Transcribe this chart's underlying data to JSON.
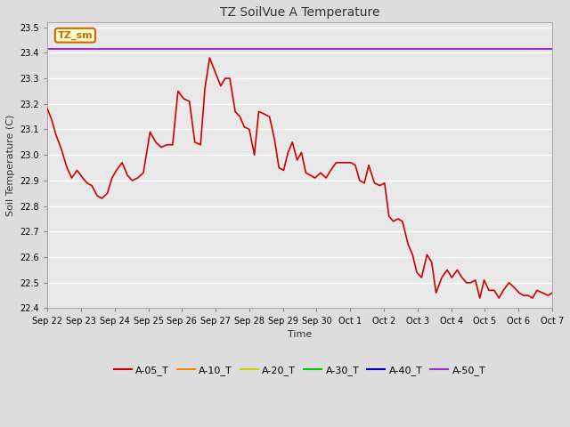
{
  "title": "TZ SoilVue A Temperature",
  "xlabel": "Time",
  "ylabel": "Soil Temperature (C)",
  "ylim": [
    22.4,
    23.52
  ],
  "yticks": [
    22.4,
    22.5,
    22.6,
    22.7,
    22.8,
    22.9,
    23.0,
    23.1,
    23.2,
    23.3,
    23.4,
    23.5
  ],
  "x_tick_labels": [
    "Sep 22",
    "Sep 23",
    "Sep 24",
    "Sep 25",
    "Sep 26",
    "Sep 27",
    "Sep 28",
    "Sep 29",
    "Sep 30",
    "Oct 1",
    "Oct 2",
    "Oct 3",
    "Oct 4",
    "Oct 5",
    "Oct 6",
    "Oct 7"
  ],
  "annotation_text": "TZ_sm",
  "annotation_color": "#cc6600",
  "annotation_bg": "#ffffcc",
  "annotation_border": "#cc6600",
  "horizontal_line_y": 23.415,
  "horizontal_line_color": "#9933cc",
  "bg_color": "#dddddd",
  "plot_bg_color": "#e8e8e8",
  "grid_color": "#ffffff",
  "a05_color": "#cc0000",
  "a10_color": "#ff8800",
  "a20_color": "#cccc00",
  "a30_color": "#00cc00",
  "a40_color": "#0000cc",
  "a50_color": "#9933cc",
  "legend_labels": [
    "A-05_T",
    "A-10_T",
    "A-20_T",
    "A-30_T",
    "A-40_T",
    "A-50_T"
  ],
  "title_fontsize": 10,
  "axis_label_fontsize": 8,
  "tick_fontsize": 7,
  "legend_fontsize": 8,
  "a05_x": [
    0,
    0.12,
    0.25,
    0.42,
    0.58,
    0.72,
    0.88,
    1.05,
    1.18,
    1.32,
    1.48,
    1.62,
    1.78,
    1.92,
    2.05,
    2.22,
    2.38,
    2.52,
    2.68,
    2.85,
    3.05,
    3.22,
    3.38,
    3.55,
    3.72,
    3.88,
    4.05,
    4.22,
    4.38,
    4.55,
    4.68,
    4.82,
    5.0,
    5.15,
    5.28,
    5.42,
    5.58,
    5.72,
    5.85,
    6.0,
    6.15,
    6.28,
    6.45,
    6.6,
    6.75,
    6.88,
    7.02,
    7.15,
    7.28,
    7.42,
    7.55,
    7.68,
    7.82,
    7.95,
    8.12,
    8.28,
    8.42,
    8.58,
    8.72,
    8.88,
    9.02,
    9.15,
    9.28,
    9.42,
    9.55,
    9.72,
    9.88,
    10.02,
    10.15,
    10.28,
    10.42,
    10.55,
    10.72,
    10.85,
    10.98,
    11.12,
    11.28,
    11.42,
    11.55,
    11.72,
    11.88,
    12.02,
    12.18,
    12.32,
    12.45,
    12.58,
    12.72,
    12.85,
    12.98,
    13.12,
    13.28,
    13.42,
    13.55,
    13.72,
    13.88,
    14.02,
    14.15,
    14.28,
    14.42,
    14.55,
    14.72,
    14.88,
    15.0
  ],
  "a05_y": [
    23.18,
    23.14,
    23.08,
    23.02,
    22.95,
    22.91,
    22.94,
    22.91,
    22.89,
    22.88,
    22.84,
    22.83,
    22.85,
    22.91,
    22.94,
    22.97,
    22.92,
    22.9,
    22.91,
    22.93,
    23.09,
    23.05,
    23.03,
    23.04,
    23.04,
    23.25,
    23.22,
    23.21,
    23.05,
    23.04,
    23.26,
    23.38,
    23.32,
    23.27,
    23.3,
    23.3,
    23.17,
    23.15,
    23.11,
    23.1,
    23.0,
    23.17,
    23.16,
    23.15,
    23.06,
    22.95,
    22.94,
    23.01,
    23.05,
    22.98,
    23.01,
    22.93,
    22.92,
    22.91,
    22.93,
    22.91,
    22.94,
    22.97,
    22.97,
    22.97,
    22.97,
    22.96,
    22.9,
    22.89,
    22.96,
    22.89,
    22.88,
    22.89,
    22.76,
    22.74,
    22.75,
    22.74,
    22.65,
    22.61,
    22.54,
    22.52,
    22.61,
    22.58,
    22.46,
    22.52,
    22.55,
    22.52,
    22.55,
    22.52,
    22.5,
    22.5,
    22.51,
    22.44,
    22.51,
    22.47,
    22.47,
    22.44,
    22.47,
    22.5,
    22.48,
    22.46,
    22.45,
    22.45,
    22.44,
    22.47,
    22.46,
    22.45,
    22.46
  ]
}
